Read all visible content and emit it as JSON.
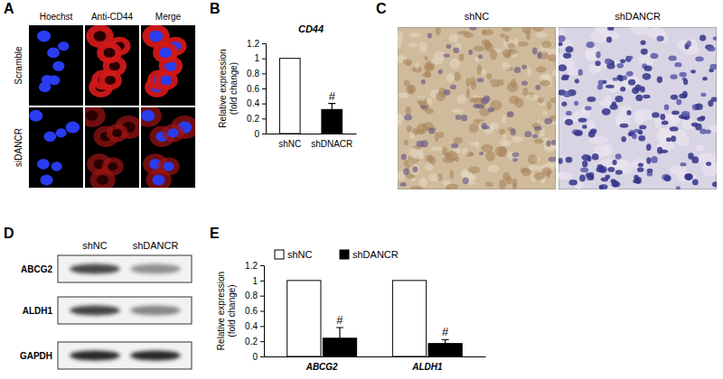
{
  "panel_labels": [
    "A",
    "B",
    "C",
    "D",
    "E"
  ],
  "microscopy": {
    "columns": [
      "Hoechst",
      "Anti-CD44",
      "Merge"
    ],
    "rows": [
      "Scramble",
      "siDANCR"
    ]
  },
  "ihc": {
    "columns": [
      "shNC",
      "shDANCR"
    ]
  },
  "western_blot": {
    "columns": [
      "shNC",
      "shDANCR"
    ],
    "rows": [
      "ABCG2",
      "ALDH1",
      "GAPDH"
    ]
  },
  "chart_data": [
    {
      "type": "bar",
      "title": "CD44",
      "y_label": [
        "Relative expression",
        "(fold change)"
      ],
      "categories": [
        "shNC",
        "shDNACR"
      ],
      "values": [
        1,
        0.32
      ],
      "error": [
        0,
        0.08
      ],
      "colors": [
        "#ffffff",
        "#000000"
      ],
      "significance": [
        null,
        "#"
      ],
      "ylim": [
        0,
        1.2
      ],
      "yticks": [
        0,
        0.2,
        0.4,
        0.6,
        0.8,
        1,
        1.2
      ]
    },
    {
      "type": "bar",
      "y_label": [
        "Relative expression",
        "(fold change)"
      ],
      "categories": [
        "ABCG2",
        "ALDH1"
      ],
      "series": [
        {
          "name": "shNC",
          "color": "#ffffff",
          "values": [
            1,
            1
          ],
          "error": [
            0,
            0
          ]
        },
        {
          "name": "shDANCR",
          "color": "#000000",
          "values": [
            0.24,
            0.17
          ],
          "error": [
            0.14,
            0.05
          ],
          "significance": [
            "#",
            "#"
          ]
        }
      ],
      "ylim": [
        0,
        1.2
      ],
      "yticks": [
        0,
        0.2,
        0.4,
        0.6,
        0.8,
        1,
        1.2
      ],
      "legend": "top"
    }
  ]
}
